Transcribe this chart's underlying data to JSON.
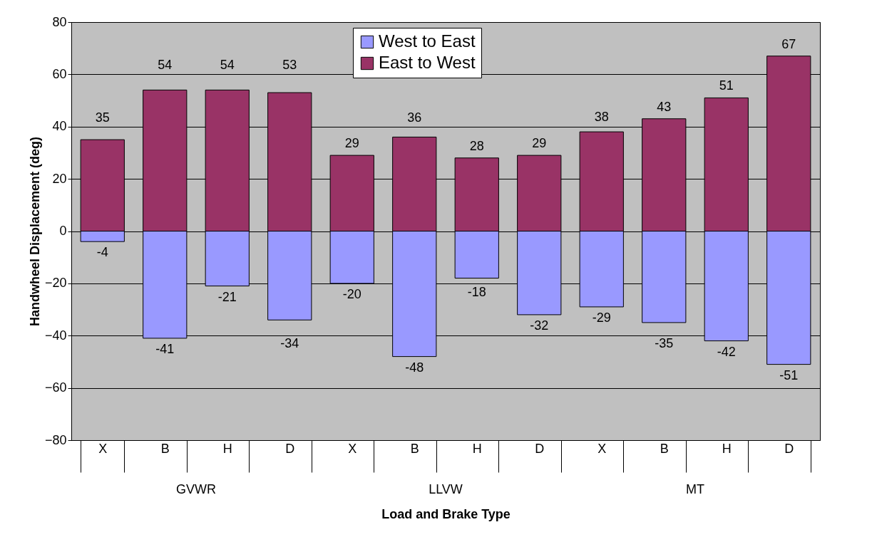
{
  "chart_data": {
    "type": "bar",
    "xlabel": "Load and Brake Type",
    "ylabel": "Handwheel Displacement (deg)",
    "categories": [
      "X",
      "B",
      "H",
      "D",
      "X",
      "B",
      "H",
      "D",
      "X",
      "B",
      "H",
      "D"
    ],
    "series": [
      {
        "name": "West to East",
        "color": "#9999ff",
        "values": [
          -4,
          -41,
          -21,
          -34,
          -20,
          -48,
          -18,
          -32,
          -29,
          -35,
          -42,
          -51
        ]
      },
      {
        "name": "East to West",
        "color": "#993366",
        "values": [
          35,
          54,
          54,
          53,
          29,
          36,
          28,
          29,
          38,
          43,
          51,
          67
        ]
      }
    ],
    "annotations": [
      "GVWR",
      "LLVW",
      "MT"
    ],
    "ylim": [
      -80,
      80
    ],
    "yticks": [
      -80,
      -60,
      -40,
      -20,
      0,
      20,
      40,
      60,
      80
    ],
    "stacked": true,
    "grid": "y",
    "legend": "top",
    "data_labels": true
  }
}
